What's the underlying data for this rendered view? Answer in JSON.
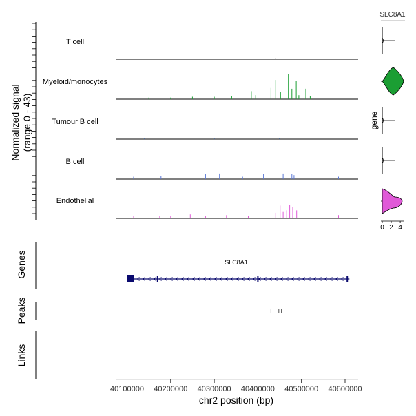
{
  "chart_data": {
    "type": "genome-browser-coverage",
    "coverage": {
      "ylabel_line1": "Normalized signal",
      "ylabel_line2": "(range 0 - 43)",
      "ylim": [
        0,
        43
      ],
      "tracks": [
        {
          "name": "T cell",
          "color": "#444444",
          "peaks": [
            [
              40350000,
              0.6
            ],
            [
              40440000,
              1.5
            ],
            [
              40560000,
              0.8
            ]
          ]
        },
        {
          "name": "Myeloid/monocytes",
          "color": "#1b9e33",
          "peaks": [
            [
              40385000,
              10
            ],
            [
              40395000,
              5
            ],
            [
              40430000,
              14
            ],
            [
              40440000,
              24
            ],
            [
              40446000,
              11
            ],
            [
              40452000,
              9
            ],
            [
              40470000,
              31
            ],
            [
              40478000,
              13
            ],
            [
              40488000,
              23
            ],
            [
              40494000,
              5
            ],
            [
              40510000,
              13
            ],
            [
              40520000,
              4
            ],
            [
              40340000,
              4
            ],
            [
              40300000,
              3
            ],
            [
              40250000,
              3
            ],
            [
              40200000,
              2
            ],
            [
              40150000,
              2
            ]
          ]
        },
        {
          "name": "Tumour B cell",
          "color": "#1f4e9c",
          "peaks": [
            [
              40140000,
              0.8
            ],
            [
              40300000,
              0.8
            ],
            [
              40450000,
              1.6
            ]
          ]
        },
        {
          "name": "B cell",
          "color": "#5a78d6",
          "peaks": [
            [
              40115000,
              3
            ],
            [
              40178000,
              4
            ],
            [
              40228000,
              5
            ],
            [
              40280000,
              6
            ],
            [
              40312000,
              7
            ],
            [
              40365000,
              3
            ],
            [
              40413000,
              6
            ],
            [
              40458000,
              7
            ],
            [
              40478000,
              6
            ],
            [
              40483000,
              5
            ],
            [
              40585000,
              3
            ]
          ]
        },
        {
          "name": "Endothelial",
          "color": "#e05ad8",
          "peaks": [
            [
              40115000,
              3
            ],
            [
              40175000,
              3
            ],
            [
              40200000,
              3
            ],
            [
              40245000,
              5
            ],
            [
              40280000,
              3
            ],
            [
              40328000,
              4
            ],
            [
              40378000,
              3
            ],
            [
              40440000,
              7
            ],
            [
              40451000,
              16
            ],
            [
              40458000,
              8
            ],
            [
              40466000,
              10
            ],
            [
              40473000,
              17
            ],
            [
              40480000,
              14
            ],
            [
              40489000,
              10
            ],
            [
              40585000,
              4
            ]
          ]
        }
      ]
    },
    "violin": {
      "title": "SLC8A1",
      "ylabel": "gene",
      "xticks": [
        "0",
        "2",
        "4"
      ],
      "xlim": [
        0,
        4.6
      ]
    },
    "genes": {
      "label": "Genes",
      "gene_name": "SLC8A1",
      "gene_start": 40100000,
      "gene_end": 40610000,
      "color": "#0a0a6e"
    },
    "peaks_track": {
      "label": "Peaks",
      "positions": [
        40430000,
        40448000,
        40454000
      ]
    },
    "links_track": {
      "label": "Links"
    },
    "xaxis": {
      "xlim": [
        40074000,
        40630000
      ],
      "ticks": [
        40100000,
        40200000,
        40300000,
        40400000,
        40500000,
        40600000
      ],
      "tick_labels": [
        "40100000",
        "40200000",
        "40300000",
        "40400000",
        "40500000",
        "40600000"
      ],
      "xlabel": "chr2 position (bp)"
    }
  }
}
